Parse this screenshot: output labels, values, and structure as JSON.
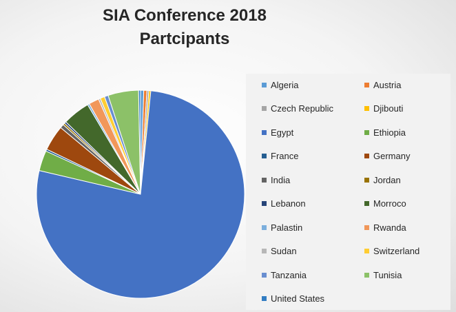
{
  "chart_data": {
    "type": "pie",
    "title": [
      "SIA Conference 2018",
      "Partcipants"
    ],
    "legend_placement": "right",
    "slices": [
      {
        "label": "Algeria",
        "value": 0.5,
        "color": "#5B9BD5"
      },
      {
        "label": "Austria",
        "value": 0.5,
        "color": "#ED7D31"
      },
      {
        "label": "Czech Republic",
        "value": 0.3,
        "color": "#A5A5A5"
      },
      {
        "label": "Djibouti",
        "value": 0.3,
        "color": "#FFC000"
      },
      {
        "label": "Egypt",
        "value": 78,
        "color": "#4472C4"
      },
      {
        "label": "Ethiopia",
        "value": 3.2,
        "color": "#70AD47"
      },
      {
        "label": "France",
        "value": 0.3,
        "color": "#255E91"
      },
      {
        "label": "Germany",
        "value": 4,
        "color": "#9E480E"
      },
      {
        "label": "India",
        "value": 0.6,
        "color": "#636363"
      },
      {
        "label": "Jordan",
        "value": 0.3,
        "color": "#997300"
      },
      {
        "label": "Lebanon",
        "value": 0.3,
        "color": "#264478"
      },
      {
        "label": "Morroco",
        "value": 4.3,
        "color": "#43682B"
      },
      {
        "label": "Palastin",
        "value": 0.3,
        "color": "#7CAFDD"
      },
      {
        "label": "Rwanda",
        "value": 1.6,
        "color": "#F1975A"
      },
      {
        "label": "Sudan",
        "value": 0.3,
        "color": "#B7B7B7"
      },
      {
        "label": "Switzerland",
        "value": 0.7,
        "color": "#FFCD33"
      },
      {
        "label": "Tanzania",
        "value": 0.6,
        "color": "#698ED0"
      },
      {
        "label": "Tunisia",
        "value": 4.8,
        "color": "#8CC168"
      },
      {
        "label": "United States",
        "value": 0.3,
        "color": "#327DC2"
      }
    ]
  }
}
